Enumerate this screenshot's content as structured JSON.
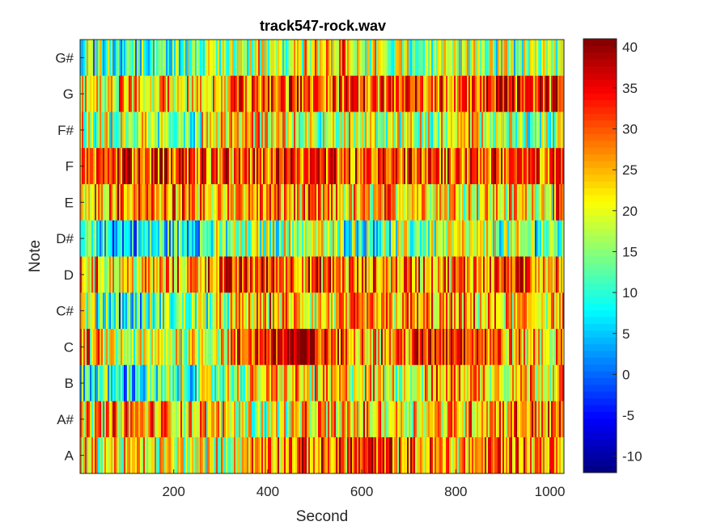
{
  "chart_data": {
    "type": "heatmap",
    "title": "track547-rock.wav",
    "xlabel": "Second",
    "ylabel": "Note",
    "xlim": [
      1,
      1030
    ],
    "xticks": [
      200,
      400,
      600,
      800,
      1000
    ],
    "rows_top_to_bottom": [
      "G#",
      "G",
      "F#",
      "F",
      "E",
      "D#",
      "D",
      "C#",
      "C",
      "B",
      "A#",
      "A"
    ],
    "colorbar": {
      "colormap": "jet",
      "range": [
        -12,
        41
      ],
      "ticks": [
        40,
        35,
        30,
        25,
        20,
        15,
        10,
        5,
        0,
        -5,
        -10
      ]
    },
    "row_profiles": {
      "G#": [
        [
          0,
          14
        ],
        [
          100,
          12
        ],
        [
          200,
          13
        ],
        [
          300,
          17
        ],
        [
          400,
          19
        ],
        [
          520,
          22
        ],
        [
          560,
          30
        ],
        [
          600,
          18
        ],
        [
          700,
          19
        ],
        [
          800,
          17
        ],
        [
          900,
          15
        ],
        [
          1000,
          16
        ],
        [
          1030,
          16
        ]
      ],
      "G": [
        [
          0,
          21
        ],
        [
          100,
          22
        ],
        [
          200,
          24
        ],
        [
          300,
          26
        ],
        [
          400,
          33
        ],
        [
          500,
          32
        ],
        [
          600,
          28
        ],
        [
          700,
          30
        ],
        [
          800,
          28
        ],
        [
          900,
          33
        ],
        [
          1000,
          32
        ],
        [
          1030,
          31
        ]
      ],
      "F#": [
        [
          0,
          20
        ],
        [
          100,
          16
        ],
        [
          200,
          13
        ],
        [
          300,
          20
        ],
        [
          400,
          23
        ],
        [
          500,
          18
        ],
        [
          600,
          20
        ],
        [
          700,
          15
        ],
        [
          800,
          21
        ],
        [
          900,
          17
        ],
        [
          1000,
          16
        ],
        [
          1030,
          17
        ]
      ],
      "F": [
        [
          0,
          32
        ],
        [
          100,
          33
        ],
        [
          200,
          31
        ],
        [
          300,
          30
        ],
        [
          400,
          30
        ],
        [
          500,
          33
        ],
        [
          600,
          28
        ],
        [
          700,
          32
        ],
        [
          800,
          30
        ],
        [
          900,
          31
        ],
        [
          1000,
          32
        ],
        [
          1030,
          33
        ]
      ],
      "E": [
        [
          0,
          26
        ],
        [
          100,
          28
        ],
        [
          200,
          26
        ],
        [
          300,
          24
        ],
        [
          400,
          27
        ],
        [
          500,
          25
        ],
        [
          600,
          22
        ],
        [
          700,
          26
        ],
        [
          800,
          24
        ],
        [
          900,
          22
        ],
        [
          1000,
          23
        ],
        [
          1030,
          24
        ]
      ],
      "D#": [
        [
          0,
          10
        ],
        [
          100,
          6
        ],
        [
          200,
          9
        ],
        [
          300,
          13
        ],
        [
          400,
          16
        ],
        [
          500,
          18
        ],
        [
          600,
          12
        ],
        [
          700,
          14
        ],
        [
          800,
          18
        ],
        [
          900,
          15
        ],
        [
          1000,
          13
        ],
        [
          1030,
          12
        ]
      ],
      "D": [
        [
          0,
          25
        ],
        [
          100,
          22
        ],
        [
          200,
          24
        ],
        [
          300,
          30
        ],
        [
          400,
          32
        ],
        [
          500,
          30
        ],
        [
          600,
          26
        ],
        [
          700,
          28
        ],
        [
          800,
          27
        ],
        [
          900,
          32
        ],
        [
          1000,
          28
        ],
        [
          1030,
          27
        ]
      ],
      "C#": [
        [
          0,
          18
        ],
        [
          100,
          9
        ],
        [
          200,
          13
        ],
        [
          300,
          18
        ],
        [
          400,
          25
        ],
        [
          500,
          22
        ],
        [
          600,
          24
        ],
        [
          700,
          25
        ],
        [
          800,
          24
        ],
        [
          900,
          22
        ],
        [
          1000,
          24
        ],
        [
          1030,
          24
        ]
      ],
      "C": [
        [
          0,
          27
        ],
        [
          100,
          16
        ],
        [
          200,
          20
        ],
        [
          300,
          22
        ],
        [
          400,
          36
        ],
        [
          470,
          38
        ],
        [
          550,
          30
        ],
        [
          650,
          26
        ],
        [
          760,
          34
        ],
        [
          820,
          38
        ],
        [
          900,
          26
        ],
        [
          1000,
          22
        ],
        [
          1030,
          22
        ]
      ],
      "B": [
        [
          0,
          12
        ],
        [
          100,
          8
        ],
        [
          200,
          12
        ],
        [
          300,
          15
        ],
        [
          400,
          24
        ],
        [
          500,
          22
        ],
        [
          600,
          22
        ],
        [
          700,
          20
        ],
        [
          800,
          27
        ],
        [
          900,
          24
        ],
        [
          1000,
          25
        ],
        [
          1030,
          25
        ]
      ],
      "A#": [
        [
          0,
          24
        ],
        [
          100,
          26
        ],
        [
          200,
          25
        ],
        [
          300,
          22
        ],
        [
          400,
          18
        ],
        [
          500,
          23
        ],
        [
          600,
          24
        ],
        [
          700,
          22
        ],
        [
          800,
          25
        ],
        [
          900,
          28
        ],
        [
          1000,
          28
        ],
        [
          1030,
          28
        ]
      ],
      "A": [
        [
          0,
          22
        ],
        [
          100,
          21
        ],
        [
          200,
          20
        ],
        [
          300,
          18
        ],
        [
          400,
          29
        ],
        [
          500,
          28
        ],
        [
          600,
          32
        ],
        [
          700,
          27
        ],
        [
          800,
          25
        ],
        [
          900,
          30
        ],
        [
          1000,
          27
        ],
        [
          1030,
          28
        ]
      ]
    }
  }
}
